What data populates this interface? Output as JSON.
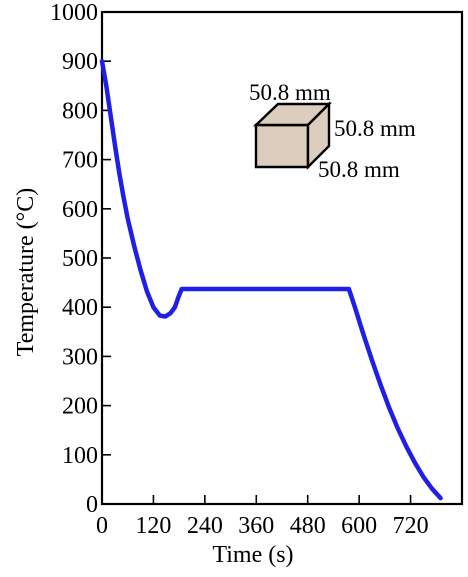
{
  "chart_data": {
    "type": "line",
    "xlabel": "Time (s)",
    "ylabel": "Temperature (°C)",
    "xlim": [
      0,
      840
    ],
    "ylim": [
      0,
      1000
    ],
    "x_ticks": [
      0,
      120,
      240,
      360,
      480,
      600,
      720
    ],
    "y_ticks": [
      0,
      100,
      200,
      300,
      400,
      500,
      600,
      700,
      800,
      900,
      1000
    ],
    "grid": false,
    "legend": "none",
    "series": [
      {
        "color": "#1f1fe6",
        "x": [
          0,
          10,
          20,
          30,
          40,
          50,
          60,
          75,
          90,
          105,
          120,
          135,
          148,
          160,
          170,
          178,
          186,
          200,
          300,
          400,
          500,
          576,
          590,
          610,
          630,
          650,
          670,
          690,
          710,
          730,
          750,
          770,
          790
        ],
        "y": [
          900,
          850,
          790,
          730,
          675,
          625,
          580,
          525,
          475,
          432,
          400,
          383,
          381,
          388,
          400,
          420,
          437,
          437,
          437,
          437,
          437,
          437,
          400,
          345,
          292,
          242,
          196,
          154,
          117,
          84,
          55,
          31,
          12
        ]
      }
    ]
  },
  "inset": {
    "dimensions": [
      "50.8 mm",
      "50.8 mm",
      "50.8 mm"
    ],
    "cube_color": "#dccdbe"
  }
}
